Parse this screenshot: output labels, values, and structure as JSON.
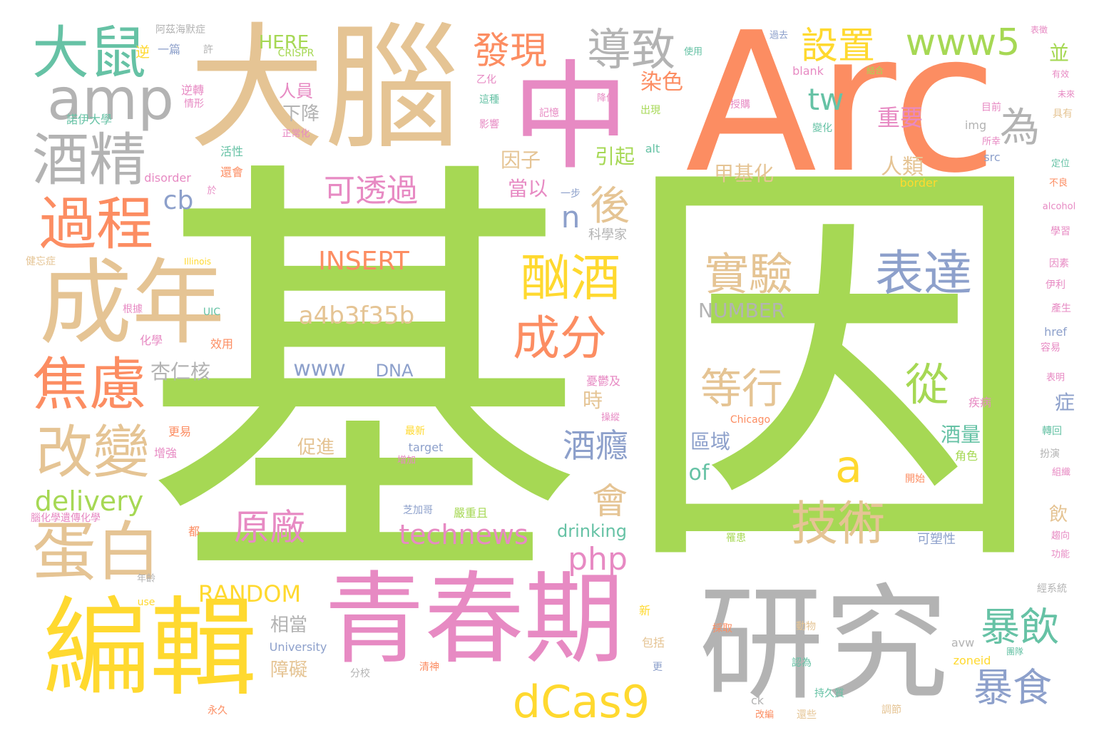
{
  "words": [
    {
      "text": "基",
      "color": "green"
    },
    {
      "text": "因",
      "color": "green"
    },
    {
      "text": "Arc",
      "color": "orange"
    },
    {
      "text": "大腦",
      "color": "tan"
    },
    {
      "text": "中",
      "color": "pink"
    },
    {
      "text": "研究",
      "color": "gray"
    },
    {
      "text": "青春期",
      "color": "pink"
    },
    {
      "text": "編輯",
      "color": "yellow"
    },
    {
      "text": "成年",
      "color": "tan"
    },
    {
      "text": "大鼠",
      "color": "teal"
    },
    {
      "text": "amp",
      "color": "gray"
    },
    {
      "text": "酒精",
      "color": "gray"
    },
    {
      "text": "過程",
      "color": "orange"
    },
    {
      "text": "焦慮",
      "color": "orange"
    },
    {
      "text": "改變",
      "color": "tan"
    },
    {
      "text": "蛋白",
      "color": "tan"
    },
    {
      "text": "導致",
      "color": "gray"
    },
    {
      "text": "發現",
      "color": "orange"
    },
    {
      "text": "設置",
      "color": "yellow"
    },
    {
      "text": "www5",
      "color": "green"
    },
    {
      "text": "表達",
      "color": "blue"
    },
    {
      "text": "實驗",
      "color": "tan"
    },
    {
      "text": "酗酒",
      "color": "yellow"
    },
    {
      "text": "成分",
      "color": "orange"
    },
    {
      "text": "技術",
      "color": "tan"
    },
    {
      "text": "等行",
      "color": "tan"
    },
    {
      "text": "暴飲",
      "color": "teal"
    },
    {
      "text": "暴食",
      "color": "blue"
    },
    {
      "text": "dCas9",
      "color": "yellow"
    },
    {
      "text": "可透過",
      "color": "pink"
    },
    {
      "text": "酒癮",
      "color": "blue"
    },
    {
      "text": "原廠",
      "color": "pink"
    },
    {
      "text": "technews",
      "color": "pink"
    },
    {
      "text": "delivery",
      "color": "green"
    },
    {
      "text": "RANDOM",
      "color": "yellow"
    },
    {
      "text": "INSERT",
      "color": "orange"
    },
    {
      "text": "a4b3f35b",
      "color": "tan"
    },
    {
      "text": "www",
      "color": "blue"
    },
    {
      "text": "DNA",
      "color": "blue"
    },
    {
      "text": "為",
      "color": "gray"
    },
    {
      "text": "後",
      "color": "tan"
    },
    {
      "text": "tw",
      "color": "teal"
    },
    {
      "text": "從",
      "color": "green"
    },
    {
      "text": "a",
      "color": "yellow"
    },
    {
      "text": "會",
      "color": "tan"
    },
    {
      "text": "php",
      "color": "pink"
    },
    {
      "text": "cb",
      "color": "blue"
    },
    {
      "text": "n",
      "color": "blue"
    },
    {
      "text": "重要",
      "color": "pink"
    },
    {
      "text": "甲基化",
      "color": "tan"
    },
    {
      "text": "人類",
      "color": "tan"
    },
    {
      "text": "因子",
      "color": "tan"
    },
    {
      "text": "當以",
      "color": "pink"
    },
    {
      "text": "引起",
      "color": "green"
    },
    {
      "text": "染色",
      "color": "orange"
    },
    {
      "text": "下降",
      "color": "gray"
    },
    {
      "text": "人員",
      "color": "pink"
    },
    {
      "text": "杏仁核",
      "color": "gray"
    },
    {
      "text": "NUMBER",
      "color": "gray"
    },
    {
      "text": "區域",
      "color": "blue"
    },
    {
      "text": "of",
      "color": "teal"
    },
    {
      "text": "HERE",
      "color": "green"
    },
    {
      "text": "促進",
      "color": "tan"
    },
    {
      "text": "相當",
      "color": "gray"
    },
    {
      "text": "障礙",
      "color": "tan"
    },
    {
      "text": "酒量",
      "color": "teal"
    },
    {
      "text": "症",
      "color": "blue"
    },
    {
      "text": "並",
      "color": "green"
    },
    {
      "text": "時",
      "color": "tan"
    },
    {
      "text": "飲",
      "color": "tan"
    },
    {
      "text": "drinking",
      "color": "teal"
    },
    {
      "text": "可塑性",
      "color": "blue"
    },
    {
      "text": "CRISPR",
      "color": "green"
    },
    {
      "text": "阿茲海默症",
      "color": "gray"
    },
    {
      "text": "一篇",
      "color": "blue"
    },
    {
      "text": "許",
      "color": "gray"
    },
    {
      "text": "逆轉",
      "color": "pink"
    },
    {
      "text": "逆",
      "color": "yellow"
    },
    {
      "text": "情形",
      "color": "pink"
    },
    {
      "text": "諾伊大學",
      "color": "teal"
    },
    {
      "text": "正常化",
      "color": "pink"
    },
    {
      "text": "活性",
      "color": "teal"
    },
    {
      "text": "還會",
      "color": "orange"
    },
    {
      "text": "disorder",
      "color": "pink"
    },
    {
      "text": "於",
      "color": "pink"
    },
    {
      "text": "科學家",
      "color": "gray"
    },
    {
      "text": "一步",
      "color": "blue"
    },
    {
      "text": "健忘症",
      "color": "tan"
    },
    {
      "text": "Illinois",
      "color": "yellow"
    },
    {
      "text": "根據",
      "color": "pink"
    },
    {
      "text": "UIC",
      "color": "teal"
    },
    {
      "text": "化學",
      "color": "pink"
    },
    {
      "text": "效用",
      "color": "orange"
    },
    {
      "text": "更易",
      "color": "orange"
    },
    {
      "text": "增強",
      "color": "pink"
    },
    {
      "text": "腦化學遺傳化學",
      "color": "pink"
    },
    {
      "text": "都",
      "color": "orange"
    },
    {
      "text": "年齡",
      "color": "gray"
    },
    {
      "text": "use",
      "color": "yellow"
    },
    {
      "text": "University",
      "color": "blue"
    },
    {
      "text": "分校",
      "color": "gray"
    },
    {
      "text": "永久",
      "color": "orange"
    },
    {
      "text": "清神",
      "color": "orange"
    },
    {
      "text": "新",
      "color": "yellow"
    },
    {
      "text": "包括",
      "color": "tan"
    },
    {
      "text": "更",
      "color": "blue"
    },
    {
      "text": "採取",
      "color": "orange"
    },
    {
      "text": "動物",
      "color": "tan"
    },
    {
      "text": "認為",
      "color": "teal"
    },
    {
      "text": "持久質",
      "color": "teal"
    },
    {
      "text": "還些",
      "color": "tan"
    },
    {
      "text": "調節",
      "color": "tan"
    },
    {
      "text": "ck",
      "color": "gray"
    },
    {
      "text": "改編",
      "color": "orange"
    },
    {
      "text": "avw",
      "color": "gray"
    },
    {
      "text": "zoneid",
      "color": "yellow"
    },
    {
      "text": "團隊",
      "color": "teal"
    },
    {
      "text": "罹患",
      "color": "green"
    },
    {
      "text": "角色",
      "color": "green"
    },
    {
      "text": "開始",
      "color": "orange"
    },
    {
      "text": "疾病",
      "color": "pink"
    },
    {
      "text": "Chicago",
      "color": "orange"
    },
    {
      "text": "芝加哥",
      "color": "blue"
    },
    {
      "text": "嚴重且",
      "color": "green"
    },
    {
      "text": "最新",
      "color": "yellow"
    },
    {
      "text": "target",
      "color": "blue"
    },
    {
      "text": "增加",
      "color": "pink"
    },
    {
      "text": "憂鬱及",
      "color": "pink"
    },
    {
      "text": "操縱",
      "color": "pink"
    },
    {
      "text": "alt",
      "color": "teal"
    },
    {
      "text": "src",
      "color": "blue"
    },
    {
      "text": "img",
      "color": "gray"
    },
    {
      "text": "blank",
      "color": "pink"
    },
    {
      "text": "border",
      "color": "yellow"
    },
    {
      "text": "alcohol",
      "color": "pink"
    },
    {
      "text": "href",
      "color": "blue"
    },
    {
      "text": "學習",
      "color": "pink"
    },
    {
      "text": "因素",
      "color": "pink"
    },
    {
      "text": "伊利",
      "color": "pink"
    },
    {
      "text": "產生",
      "color": "pink"
    },
    {
      "text": "容易",
      "color": "pink"
    },
    {
      "text": "表明",
      "color": "pink"
    },
    {
      "text": "轉回",
      "color": "teal"
    },
    {
      "text": "扮演",
      "color": "gray"
    },
    {
      "text": "組織",
      "color": "pink"
    },
    {
      "text": "趨向",
      "color": "pink"
    },
    {
      "text": "功能",
      "color": "pink"
    },
    {
      "text": "經系統",
      "color": "gray"
    },
    {
      "text": "定位",
      "color": "teal"
    },
    {
      "text": "不良",
      "color": "orange"
    },
    {
      "text": "具有",
      "color": "tan"
    },
    {
      "text": "目前",
      "color": "pink"
    },
    {
      "text": "所幸",
      "color": "pink"
    },
    {
      "text": "表徵",
      "color": "pink"
    },
    {
      "text": "有效",
      "color": "pink"
    },
    {
      "text": "未來",
      "color": "pink"
    },
    {
      "text": "過去",
      "color": "blue"
    },
    {
      "text": "使用",
      "color": "teal"
    },
    {
      "text": "授購",
      "color": "pink"
    },
    {
      "text": "變化",
      "color": "teal"
    },
    {
      "text": "結合",
      "color": "green"
    },
    {
      "text": "降低",
      "color": "pink"
    },
    {
      "text": "記憶",
      "color": "pink"
    },
    {
      "text": "影響",
      "color": "pink"
    },
    {
      "text": "這種",
      "color": "teal"
    },
    {
      "text": "出現",
      "color": "green"
    },
    {
      "text": "乙化",
      "color": "pink"
    }
  ]
}
